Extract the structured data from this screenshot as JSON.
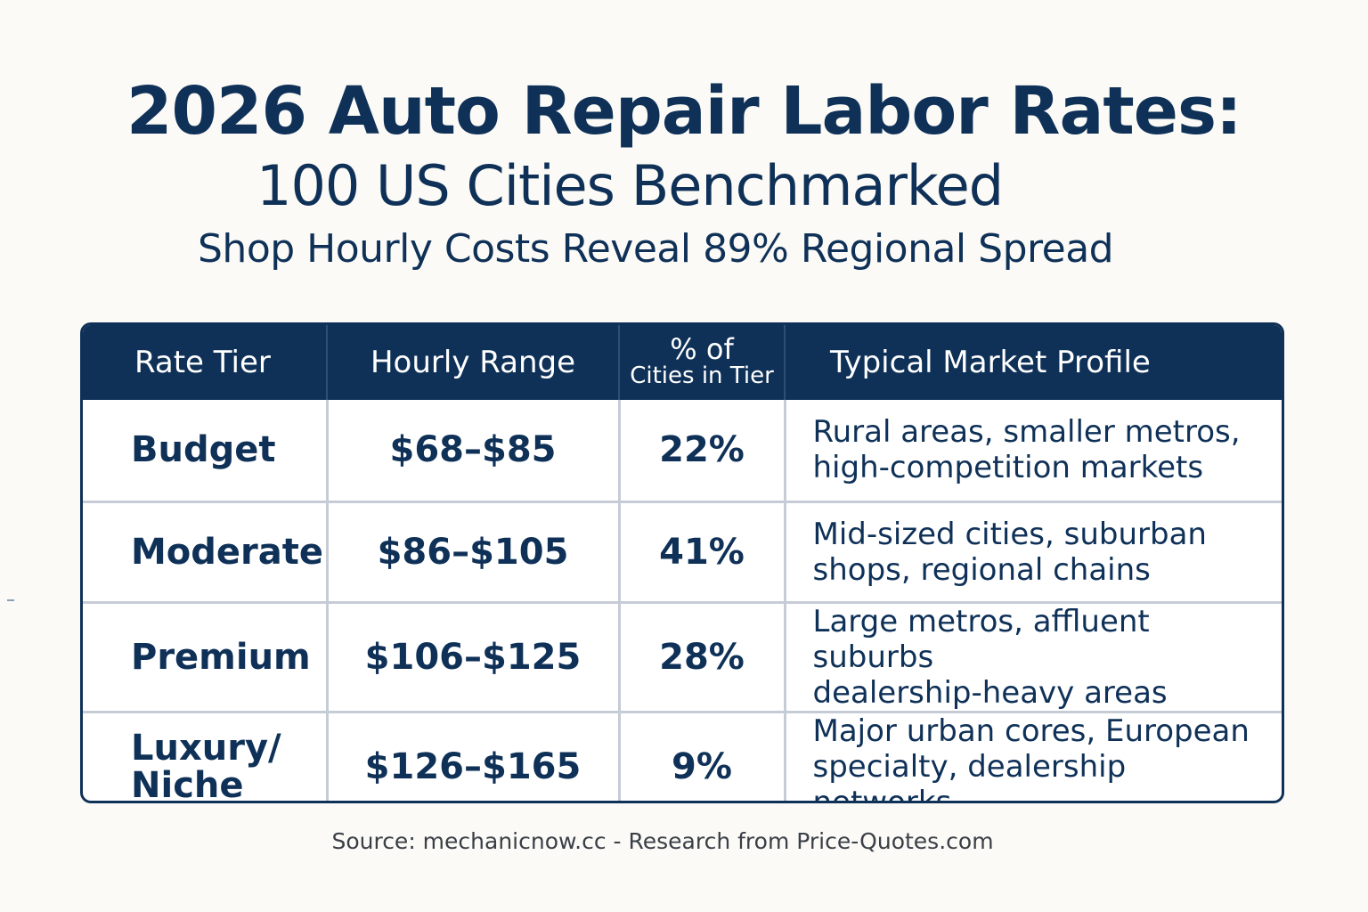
{
  "header": {
    "title": "2026 Auto Repair Labor Rates:",
    "subtitle": "100 US Cities Benchmarked",
    "tagline": "Shop Hourly Costs Reveal 89% Regional Spread"
  },
  "table": {
    "columns": {
      "tier": "Rate Tier",
      "range": "Hourly Range",
      "pct_line1": "% of",
      "pct_line2": "Cities in Tier",
      "profile": "Typical Market Profile"
    },
    "rows": [
      {
        "tier": "Budget",
        "range": "$68–$85",
        "pct": "22%",
        "profile_line1": "Rural areas, smaller metros,",
        "profile_line2": "high-competition markets"
      },
      {
        "tier": "Moderate",
        "range": "$86–$105",
        "pct": "41%",
        "profile_line1": "Mid-sized cities, suburban",
        "profile_line2": "shops, regional chains"
      },
      {
        "tier": "Premium",
        "range": "$106–$125",
        "pct": "28%",
        "profile_line1": "Large metros, affluent suburbs",
        "profile_line2": "dealership-heavy areas"
      },
      {
        "tier_line1": "Luxury/",
        "tier_line2": "Niche",
        "range": "$126–$165",
        "pct": "9%",
        "profile_line1": "Major urban cores, European",
        "profile_line2": "specialty, dealership networks"
      }
    ]
  },
  "footer": {
    "source": "Source: mechanicnow.cc - Research from Price-Quotes.com"
  }
}
